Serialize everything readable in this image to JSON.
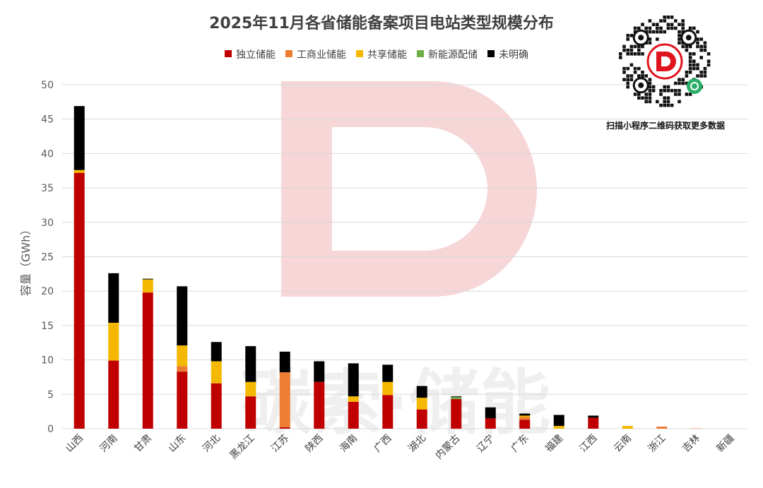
{
  "colors": {
    "独立储能": "#c00000",
    "工商业储能": "#ed7d31",
    "共享储能": "#f5b800",
    "新能源配储": "#70ad47",
    "未明确": "#000000"
  },
  "watermark": {
    "text": "碳索·储能",
    "logo_color": "#f6d6d6"
  },
  "qr": {
    "caption": "扫描小程序二维码获取更多数据",
    "icon": "qr-code-miniprogram-icon",
    "accent": "#e0141e"
  },
  "chart_data": {
    "type": "bar",
    "stacked": true,
    "title": "2025年11月各省储能备案项目电站类型规模分布",
    "xlabel": "",
    "ylabel": "容量（GWh）",
    "ylim": [
      0,
      50
    ],
    "yticks": [
      0,
      5,
      10,
      15,
      20,
      25,
      30,
      35,
      40,
      45,
      50
    ],
    "grid": true,
    "legend": "top-center",
    "categories": [
      "山西",
      "河南",
      "甘肃",
      "山东",
      "河北",
      "黑龙江",
      "江苏",
      "陕西",
      "海南",
      "广西",
      "湖北",
      "内蒙古",
      "辽宁",
      "广东",
      "福建",
      "江西",
      "云南",
      "浙江",
      "吉林",
      "新疆"
    ],
    "series": [
      {
        "name": "独立储能",
        "values": [
          37.2,
          9.9,
          19.8,
          8.3,
          6.6,
          4.7,
          0.2,
          6.8,
          3.9,
          4.9,
          2.8,
          4.3,
          1.5,
          1.3,
          0.0,
          1.6,
          0.0,
          0.0,
          0.0,
          0.0
        ]
      },
      {
        "name": "工商业储能",
        "values": [
          0.0,
          0.0,
          0.0,
          0.8,
          0.0,
          0.0,
          8.0,
          0.0,
          0.0,
          0.0,
          0.0,
          0.0,
          0.0,
          0.4,
          0.0,
          0.0,
          0.0,
          0.3,
          0.05,
          0.0
        ]
      },
      {
        "name": "共享储能",
        "values": [
          0.4,
          5.5,
          1.9,
          3.0,
          3.2,
          2.1,
          0.0,
          0.0,
          0.8,
          1.9,
          1.7,
          0.0,
          0.0,
          0.2,
          0.4,
          0.0,
          0.4,
          0.0,
          0.0,
          0.0
        ]
      },
      {
        "name": "新能源配储",
        "values": [
          0.0,
          0.0,
          0.0,
          0.0,
          0.0,
          0.0,
          0.0,
          0.0,
          0.0,
          0.0,
          0.0,
          0.3,
          0.0,
          0.0,
          0.0,
          0.0,
          0.0,
          0.0,
          0.0,
          0.0
        ]
      },
      {
        "name": "未明确",
        "values": [
          9.3,
          7.2,
          0.1,
          8.6,
          2.8,
          5.2,
          3.0,
          3.0,
          4.8,
          2.5,
          1.7,
          0.1,
          1.6,
          0.3,
          1.6,
          0.3,
          0.0,
          0.0,
          0.0,
          0.0
        ]
      }
    ]
  }
}
